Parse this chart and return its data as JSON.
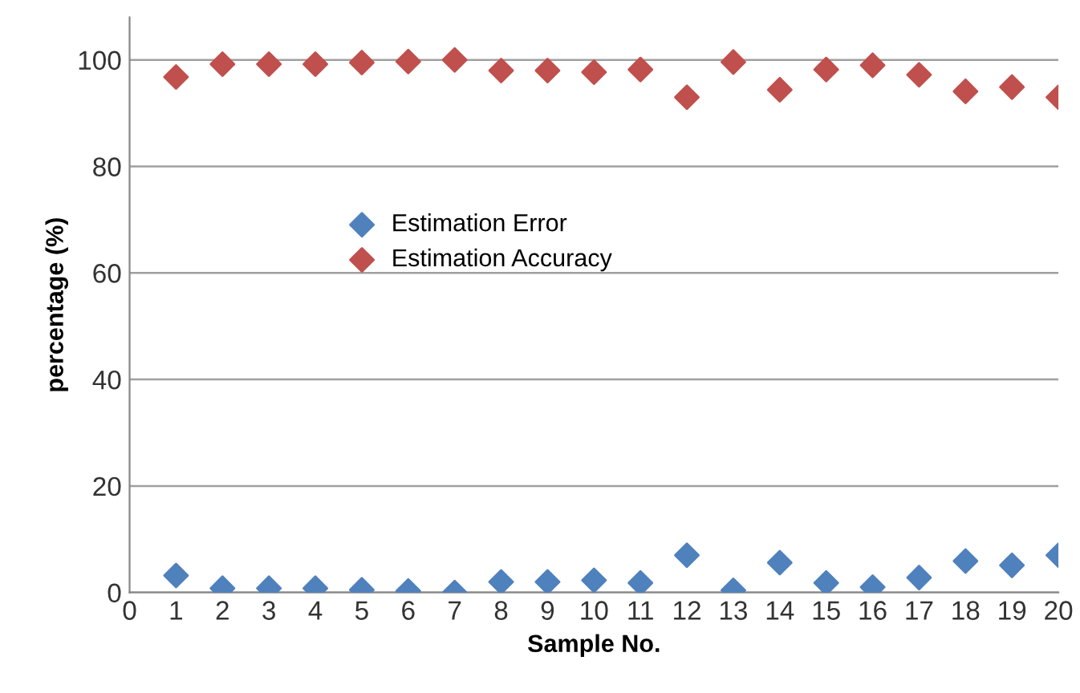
{
  "chart_data": {
    "type": "scatter",
    "xlabel": "Sample No.",
    "ylabel": "percentage (%)",
    "x": [
      1,
      2,
      3,
      4,
      5,
      6,
      7,
      8,
      9,
      10,
      11,
      12,
      13,
      14,
      15,
      16,
      17,
      18,
      19,
      20
    ],
    "series": [
      {
        "name": "Estimation Error",
        "color": "#4f81bd",
        "values": [
          3.2,
          0.8,
          0.8,
          0.8,
          0.5,
          0.3,
          0,
          2,
          2,
          2.3,
          1.8,
          7,
          0.4,
          5.6,
          1.8,
          1,
          2.8,
          5.9,
          5.1,
          7
        ]
      },
      {
        "name": "Estimation Accuracy",
        "color": "#c0504d",
        "values": [
          96.8,
          99.2,
          99.2,
          99.2,
          99.5,
          99.7,
          100,
          98,
          98,
          97.7,
          98.2,
          93,
          99.6,
          94.4,
          98.2,
          99,
          97.2,
          94.1,
          94.9,
          93
        ]
      }
    ],
    "xlim": [
      0,
      20
    ],
    "xticks": [
      0,
      1,
      2,
      3,
      4,
      5,
      6,
      7,
      8,
      9,
      10,
      11,
      12,
      13,
      14,
      15,
      16,
      17,
      18,
      19,
      20
    ],
    "ylim": [
      0,
      108
    ],
    "yticks": [
      0,
      20,
      40,
      60,
      80,
      100
    ],
    "grid": "y",
    "legend": "left",
    "marker": "diamond"
  }
}
